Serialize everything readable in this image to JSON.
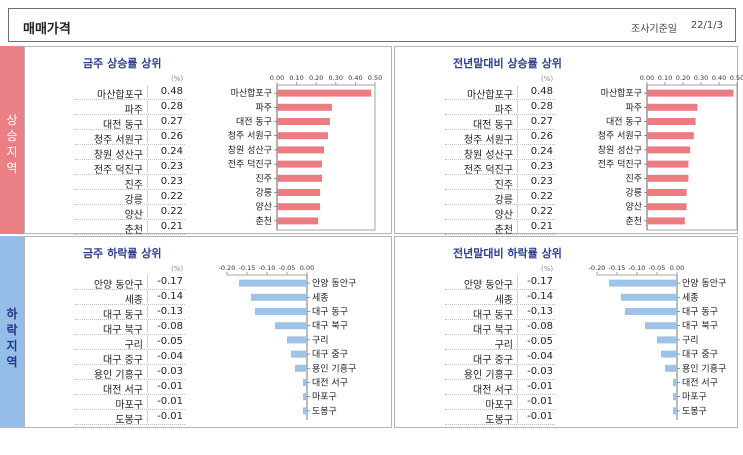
{
  "header": {
    "title": "매매가격",
    "date_label": "조사기준일",
    "date_value": "22/1/3"
  },
  "sidebar": {
    "up_label": "상승지역",
    "down_label": "하락지역"
  },
  "colors": {
    "up_bar": "#ec7b82",
    "down_bar": "#9fc3e6",
    "up_side": "#ea8085",
    "down_side": "#94bde7",
    "panel_title": "#2f3f8f"
  },
  "panels": [
    {
      "title": "금주 상승률 상위",
      "unit": "(%)",
      "rows": [
        {
          "name": "마산합포구",
          "value": "0.48"
        },
        {
          "name": "파주",
          "value": "0.28"
        },
        {
          "name": "대전 동구",
          "value": "0.27"
        },
        {
          "name": "청주 서원구",
          "value": "0.26"
        },
        {
          "name": "창원 성산구",
          "value": "0.24"
        },
        {
          "name": "전주 덕진구",
          "value": "0.23"
        },
        {
          "name": "진주",
          "value": "0.23"
        },
        {
          "name": "강릉",
          "value": "0.22"
        },
        {
          "name": "양산",
          "value": "0.22"
        },
        {
          "name": "춘천",
          "value": "0.21"
        }
      ]
    },
    {
      "title": "전년말대비 상승률 상위",
      "unit": "(%)",
      "rows": [
        {
          "name": "마산합포구",
          "value": "0.48"
        },
        {
          "name": "파주",
          "value": "0.28"
        },
        {
          "name": "대전 동구",
          "value": "0.27"
        },
        {
          "name": "청주 서원구",
          "value": "0.26"
        },
        {
          "name": "창원 성산구",
          "value": "0.24"
        },
        {
          "name": "전주 덕진구",
          "value": "0.23"
        },
        {
          "name": "진주",
          "value": "0.23"
        },
        {
          "name": "강릉",
          "value": "0.22"
        },
        {
          "name": "양산",
          "value": "0.22"
        },
        {
          "name": "춘천",
          "value": "0.21"
        }
      ]
    },
    {
      "title": "금주 하락률 상위",
      "unit": "(%)",
      "rows": [
        {
          "name": "안양 동안구",
          "value": "-0.17"
        },
        {
          "name": "세종",
          "value": "-0.14"
        },
        {
          "name": "대구 동구",
          "value": "-0.13"
        },
        {
          "name": "대구 북구",
          "value": "-0.08"
        },
        {
          "name": "구리",
          "value": "-0.05"
        },
        {
          "name": "대구 중구",
          "value": "-0.04"
        },
        {
          "name": "용인 기흥구",
          "value": "-0.03"
        },
        {
          "name": "대전 서구",
          "value": "-0.01"
        },
        {
          "name": "마포구",
          "value": "-0.01"
        },
        {
          "name": "도봉구",
          "value": "-0.01"
        }
      ]
    },
    {
      "title": "전년말대비 하락률 상위",
      "unit": "(%)",
      "rows": [
        {
          "name": "안양 동안구",
          "value": "-0.17"
        },
        {
          "name": "세종",
          "value": "-0.14"
        },
        {
          "name": "대구 동구",
          "value": "-0.13"
        },
        {
          "name": "대구 북구",
          "value": "-0.08"
        },
        {
          "name": "구리",
          "value": "-0.05"
        },
        {
          "name": "대구 중구",
          "value": "-0.04"
        },
        {
          "name": "용인 기흥구",
          "value": "-0.03"
        },
        {
          "name": "대전 서구",
          "value": "-0.01"
        },
        {
          "name": "마포구",
          "value": "-0.01"
        },
        {
          "name": "도봉구",
          "value": "-0.01"
        }
      ]
    }
  ],
  "chart_data": [
    {
      "type": "bar",
      "orientation": "horizontal",
      "categories": [
        "마산합포구",
        "파주",
        "대전 동구",
        "청주 서원구",
        "창원 성산구",
        "전주 덕진구",
        "진주",
        "강릉",
        "양산",
        "춘천"
      ],
      "values": [
        0.48,
        0.28,
        0.27,
        0.26,
        0.24,
        0.23,
        0.23,
        0.22,
        0.22,
        0.21
      ],
      "xlim": [
        0,
        0.5
      ],
      "ticks": [
        "0.00",
        "0.10",
        "0.20",
        "0.30",
        "0.40",
        "0.50"
      ],
      "tick_values": [
        0,
        0.1,
        0.2,
        0.3,
        0.4,
        0.5
      ],
      "axis_position": "top",
      "label_side": "left"
    },
    {
      "type": "bar",
      "orientation": "horizontal",
      "categories": [
        "마산합포구",
        "파주",
        "대전 동구",
        "청주 서원구",
        "창원 성산구",
        "전주 덕진구",
        "진주",
        "강릉",
        "양산",
        "춘천"
      ],
      "values": [
        0.48,
        0.28,
        0.27,
        0.26,
        0.24,
        0.23,
        0.23,
        0.22,
        0.22,
        0.21
      ],
      "xlim": [
        0,
        0.5
      ],
      "ticks": [
        "0.00",
        "0.10",
        "0.20",
        "0.30",
        "0.40",
        "0.50"
      ],
      "tick_values": [
        0,
        0.1,
        0.2,
        0.3,
        0.4,
        0.5
      ],
      "axis_position": "top",
      "label_side": "left"
    },
    {
      "type": "bar",
      "orientation": "horizontal",
      "categories": [
        "안양 동안구",
        "세종",
        "대구 동구",
        "대구 북구",
        "구리",
        "대구 중구",
        "용인 기흥구",
        "대전 서구",
        "마포구",
        "도봉구"
      ],
      "values": [
        -0.17,
        -0.14,
        -0.13,
        -0.08,
        -0.05,
        -0.04,
        -0.03,
        -0.01,
        -0.01,
        -0.01
      ],
      "xlim": [
        -0.2,
        0
      ],
      "ticks": [
        "-0.20",
        "-0.15",
        "-0.10",
        "-0.05",
        "0.00"
      ],
      "tick_values": [
        -0.2,
        -0.15,
        -0.1,
        -0.05,
        0
      ],
      "axis_position": "top",
      "label_side": "right"
    },
    {
      "type": "bar",
      "orientation": "horizontal",
      "categories": [
        "안양 동안구",
        "세종",
        "대구 동구",
        "대구 북구",
        "구리",
        "대구 중구",
        "용인 기흥구",
        "대전 서구",
        "마포구",
        "도봉구"
      ],
      "values": [
        -0.17,
        -0.14,
        -0.13,
        -0.08,
        -0.05,
        -0.04,
        -0.03,
        -0.01,
        -0.01,
        -0.01
      ],
      "xlim": [
        -0.2,
        0
      ],
      "ticks": [
        "-0.20",
        "-0.15",
        "-0.10",
        "-0.05",
        "0.00"
      ],
      "tick_values": [
        -0.2,
        -0.15,
        -0.1,
        -0.05,
        0
      ],
      "axis_position": "top",
      "label_side": "right"
    }
  ]
}
